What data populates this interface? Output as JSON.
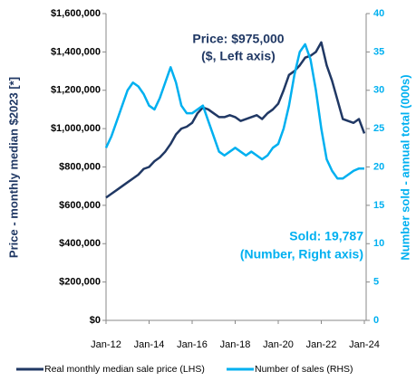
{
  "chart_data": {
    "type": "line",
    "y_label": "Price - monthly median $2023 [*]",
    "y2_label": "Number sold - annual total (000s)",
    "annotations": [
      "Price: $975,000",
      "($, Left axis)",
      "Sold: 19,787",
      "(Number, Right axis)"
    ],
    "categories": [
      "Jan-12",
      null,
      null,
      null,
      null,
      null,
      null,
      null,
      "Jan-14",
      null,
      null,
      null,
      null,
      null,
      null,
      null,
      "Jan-16",
      null,
      null,
      null,
      null,
      null,
      null,
      null,
      "Jan-18",
      null,
      null,
      null,
      null,
      null,
      null,
      null,
      "Jan-20",
      null,
      null,
      null,
      null,
      null,
      null,
      null,
      "Jan-22",
      null,
      null,
      null,
      null,
      null,
      null,
      null,
      "Jan-24"
    ],
    "series": [
      {
        "name": "Real monthly median sale price (LHS)",
        "color": "#203864",
        "values": [
          640000,
          660000,
          680000,
          700000,
          720000,
          740000,
          760000,
          790000,
          800000,
          830000,
          850000,
          880000,
          920000,
          970000,
          1000000,
          1010000,
          1030000,
          1080000,
          1110000,
          1100000,
          1080000,
          1060000,
          1060000,
          1070000,
          1060000,
          1040000,
          1050000,
          1060000,
          1070000,
          1050000,
          1080000,
          1100000,
          1130000,
          1200000,
          1280000,
          1300000,
          1330000,
          1370000,
          1380000,
          1400000,
          1450000,
          1330000,
          1250000,
          1150000,
          1050000,
          1040000,
          1030000,
          1050000,
          975000
        ]
      },
      {
        "name": "Number of sales (RHS)",
        "color": "#00b0f0",
        "axis": "y2",
        "values": [
          22.5,
          24,
          26,
          28,
          30,
          31,
          30.5,
          29.5,
          28,
          27.5,
          29,
          31,
          33,
          31,
          28,
          27,
          27,
          27.5,
          28,
          26,
          24,
          22,
          21.5,
          22,
          22.5,
          22,
          21.5,
          22,
          21.5,
          21,
          21.5,
          22.5,
          23,
          25,
          28,
          32,
          35,
          36,
          34,
          30,
          25,
          21,
          19.5,
          18.5,
          18.5,
          19,
          19.5,
          19.8,
          19.787
        ]
      }
    ],
    "ylim": [
      0,
      1600000
    ],
    "yticks": [
      {
        "value": 0,
        "label": "$0"
      },
      {
        "value": 200000,
        "label": "$200,000"
      },
      {
        "value": 400000,
        "label": "$400,000"
      },
      {
        "value": 600000,
        "label": "$600,000"
      },
      {
        "value": 800000,
        "label": "$800,000"
      },
      {
        "value": 1000000,
        "label": "$1,000,000"
      },
      {
        "value": 1200000,
        "label": "$1,200,000"
      },
      {
        "value": 1400000,
        "label": "$1,400,000"
      },
      {
        "value": 1600000,
        "label": "$1,600,000"
      }
    ],
    "y2lim": [
      0,
      40
    ],
    "y2ticks": [
      0,
      5,
      10,
      15,
      20,
      25,
      30,
      35,
      40
    ]
  }
}
